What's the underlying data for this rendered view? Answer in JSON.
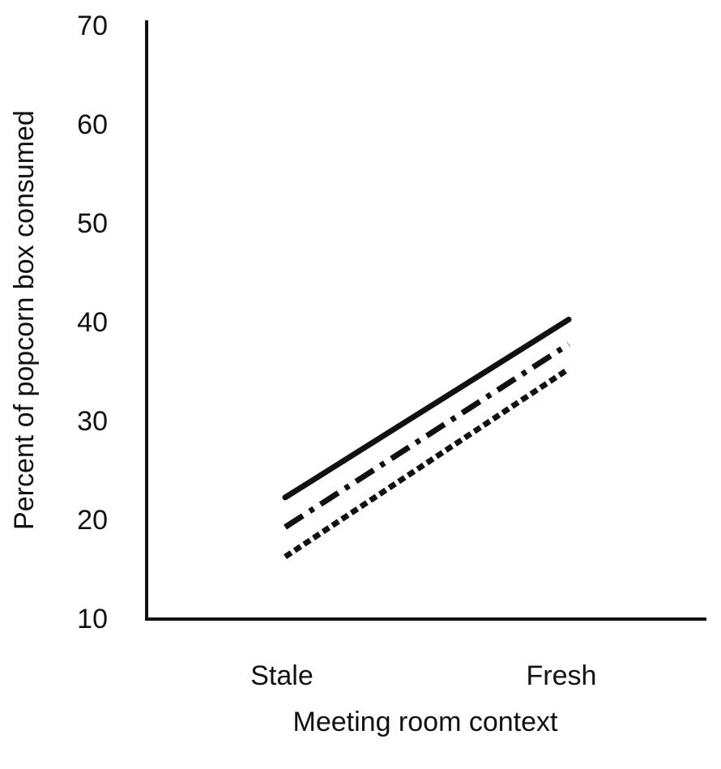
{
  "chart_data": {
    "type": "line",
    "categories": [
      "Stale",
      "Fresh"
    ],
    "series": [
      {
        "values": [
          22.3,
          40.3
        ],
        "style": "solid"
      },
      {
        "values": [
          19.3,
          37.8
        ],
        "style": "dash-dot"
      },
      {
        "values": [
          16.3,
          35.3
        ],
        "style": "dotted"
      }
    ],
    "xlabel": "Meeting room context",
    "ylabel": "Percent of popcorn box consumed",
    "ylim": [
      10,
      70
    ],
    "yticks": [
      10,
      20,
      30,
      40,
      50,
      60,
      70
    ],
    "grid": false,
    "legend": "none",
    "line_color": "#111111",
    "background_color": "#ffffff"
  }
}
